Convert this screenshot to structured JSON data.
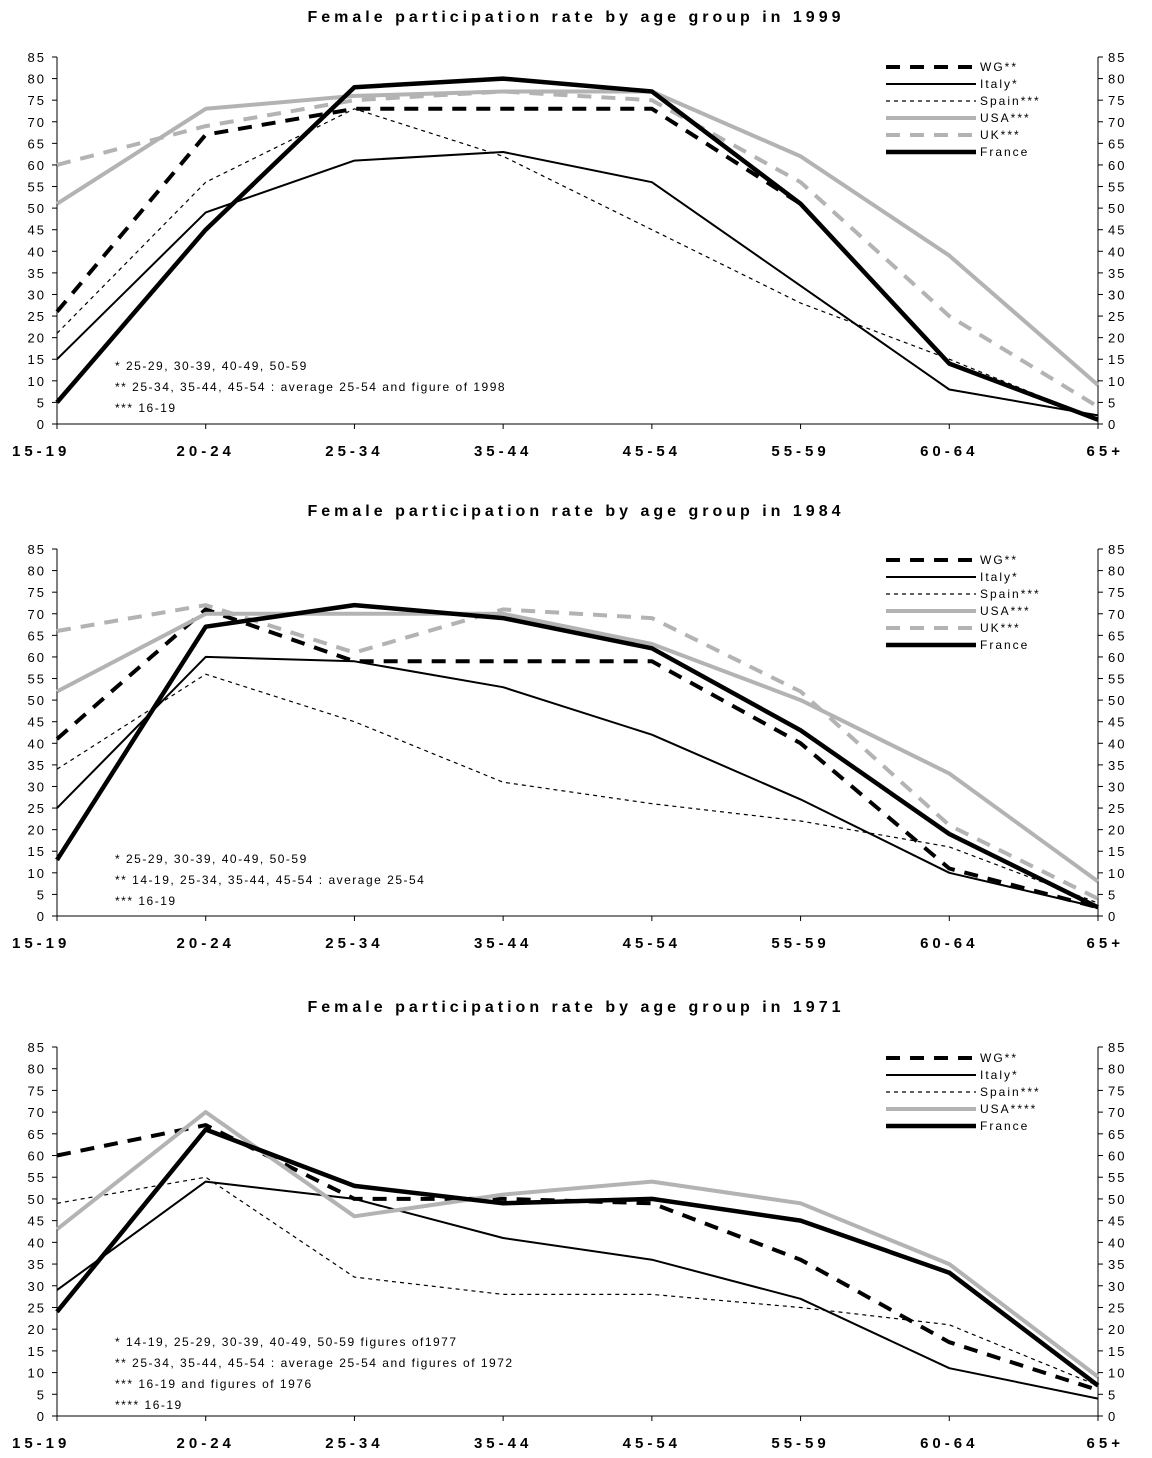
{
  "styles": {
    "WG": {
      "color": "#000000",
      "width": 4,
      "dash": "14,10"
    },
    "Italy": {
      "color": "#000000",
      "width": 2,
      "dash": ""
    },
    "Spain": {
      "color": "#000000",
      "width": 1.2,
      "dash": "4,4"
    },
    "USA": {
      "color": "#b3b3b3",
      "width": 4,
      "dash": ""
    },
    "UK": {
      "color": "#b3b3b3",
      "width": 4,
      "dash": "14,10"
    },
    "France": {
      "color": "#000000",
      "width": 4.5,
      "dash": ""
    }
  },
  "chart_data": [
    {
      "type": "line",
      "title": "Female participation rate by age group in 1999",
      "categories": [
        "15-19",
        "20-24",
        "25-34",
        "35-44",
        "45-54",
        "55-59",
        "60-64",
        "65+"
      ],
      "ylim": [
        0,
        85
      ],
      "yticks": [
        0,
        5,
        10,
        15,
        20,
        25,
        30,
        35,
        40,
        45,
        50,
        55,
        60,
        65,
        70,
        75,
        80,
        85
      ],
      "grid": false,
      "legend_position": "top-right",
      "series": [
        {
          "name": "WG**",
          "style": "WG",
          "values": [
            26,
            67,
            73,
            73,
            73,
            51,
            14,
            1
          ]
        },
        {
          "name": "Italy*",
          "style": "Italy",
          "values": [
            15,
            49,
            61,
            63,
            56,
            32,
            8,
            2
          ]
        },
        {
          "name": "Spain***",
          "style": "Spain",
          "values": [
            21,
            56,
            73,
            62,
            45,
            28,
            15,
            1
          ]
        },
        {
          "name": "USA***",
          "style": "USA",
          "values": [
            51,
            73,
            76,
            77,
            77,
            62,
            39,
            9
          ]
        },
        {
          "name": "UK***",
          "style": "UK",
          "values": [
            60,
            69,
            75,
            77,
            75,
            56,
            25,
            4
          ]
        },
        {
          "name": "France",
          "style": "France",
          "values": [
            5,
            45,
            78,
            80,
            77,
            51,
            14,
            1
          ]
        }
      ],
      "notes": [
        "* 25-29, 30-39, 40-49, 50-59",
        "** 25-34, 35-44, 45-54 : average 25-54 and figure of 1998",
        "*** 16-19"
      ]
    },
    {
      "type": "line",
      "title": "Female participation rate by age group in 1984",
      "categories": [
        "15-19",
        "20-24",
        "25-34",
        "35-44",
        "45-54",
        "55-59",
        "60-64",
        "65+"
      ],
      "ylim": [
        0,
        85
      ],
      "yticks": [
        0,
        5,
        10,
        15,
        20,
        25,
        30,
        35,
        40,
        45,
        50,
        55,
        60,
        65,
        70,
        75,
        80,
        85
      ],
      "grid": false,
      "legend_position": "top-right",
      "series": [
        {
          "name": "WG**",
          "style": "WG",
          "values": [
            41,
            71,
            59,
            59,
            59,
            40,
            11,
            2
          ]
        },
        {
          "name": "Italy*",
          "style": "Italy",
          "values": [
            25,
            60,
            59,
            53,
            42,
            27,
            10,
            2
          ]
        },
        {
          "name": "Spain***",
          "style": "Spain",
          "values": [
            34,
            56,
            45,
            31,
            26,
            22,
            16,
            3
          ]
        },
        {
          "name": "USA***",
          "style": "USA",
          "values": [
            52,
            70,
            70,
            70,
            63,
            50,
            33,
            8
          ]
        },
        {
          "name": "UK***",
          "style": "UK",
          "values": [
            66,
            72,
            61,
            71,
            69,
            52,
            21,
            4
          ]
        },
        {
          "name": "France",
          "style": "France",
          "values": [
            13,
            67,
            72,
            69,
            62,
            43,
            19,
            2
          ]
        }
      ],
      "notes": [
        "* 25-29, 30-39, 40-49, 50-59",
        "** 14-19, 25-34, 35-44, 45-54 : average 25-54",
        "*** 16-19"
      ]
    },
    {
      "type": "line",
      "title": "Female participation rate by age group in 1971",
      "categories": [
        "15-19",
        "20-24",
        "25-34",
        "35-44",
        "45-54",
        "55-59",
        "60-64",
        "65+"
      ],
      "ylim": [
        0,
        85
      ],
      "yticks": [
        0,
        5,
        10,
        15,
        20,
        25,
        30,
        35,
        40,
        45,
        50,
        55,
        60,
        65,
        70,
        75,
        80,
        85
      ],
      "grid": false,
      "legend_position": "top-right",
      "series": [
        {
          "name": "WG**",
          "style": "WG",
          "values": [
            60,
            67,
            50,
            50,
            49,
            36,
            17,
            6
          ]
        },
        {
          "name": "Italy*",
          "style": "Italy",
          "values": [
            29,
            54,
            50,
            41,
            36,
            27,
            11,
            4
          ]
        },
        {
          "name": "Spain***",
          "style": "Spain",
          "values": [
            49,
            55,
            32,
            28,
            28,
            25,
            21,
            7
          ]
        },
        {
          "name": "USA****",
          "style": "USA",
          "values": [
            43,
            70,
            46,
            51,
            54,
            49,
            35,
            9
          ]
        },
        {
          "name": "France",
          "style": "France",
          "values": [
            24,
            66,
            53,
            49,
            50,
            45,
            33,
            7
          ]
        }
      ],
      "notes": [
        "* 14-19, 25-29, 30-39, 40-49, 50-59 figures of1977",
        "** 25-34, 35-44, 45-54 : average 25-54 and figures of 1972",
        "*** 16-19 and figures of 1976",
        "**** 16-19"
      ]
    }
  ]
}
